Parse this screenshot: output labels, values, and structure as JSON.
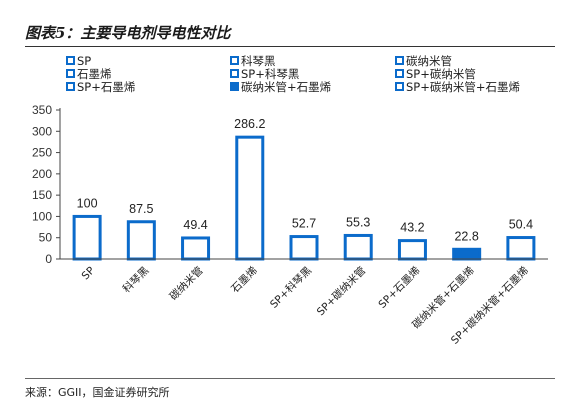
{
  "header": {
    "title": "图表5：主要导电剂导电性对比"
  },
  "footer": {
    "source": "来源：GGII，国金证券研究所"
  },
  "colors": {
    "accent": "#0b6bcb",
    "outline_fill": "#ffffff",
    "axis": "#444444"
  },
  "chart_data": {
    "type": "bar",
    "title": "图表5：主要导电剂导电性对比",
    "categories": [
      "SP",
      "科琴黑",
      "碳纳米管",
      "石墨烯",
      "SP+科琴黑",
      "SP+碳纳米管",
      "SP+石墨烯",
      "碳纳米管+石墨烯",
      "SP+碳纳米管+石墨烯"
    ],
    "values": [
      100,
      87.5,
      49.4,
      286.2,
      52.7,
      55.3,
      43.2,
      22.8,
      50.4
    ],
    "value_labels": [
      "100",
      "87.5",
      "49.4",
      "286.2",
      "52.7",
      "55.3",
      "43.2",
      "22.8",
      "50.4"
    ],
    "filled": [
      false,
      false,
      false,
      false,
      false,
      false,
      false,
      true,
      false
    ],
    "ylim": [
      0,
      350
    ],
    "yticks": [
      "0",
      "50",
      "100",
      "150",
      "200",
      "250",
      "300",
      "350"
    ],
    "xlabel": "",
    "ylabel": "",
    "grid": false,
    "legend": {
      "position": "top",
      "entries": [
        "SP",
        "科琴黑",
        "碳纳米管",
        "石墨烯",
        "SP+科琴黑",
        "SP+碳纳米管",
        "SP+石墨烯",
        "碳纳米管+石墨烯",
        "SP+碳纳米管+石墨烯"
      ]
    }
  }
}
